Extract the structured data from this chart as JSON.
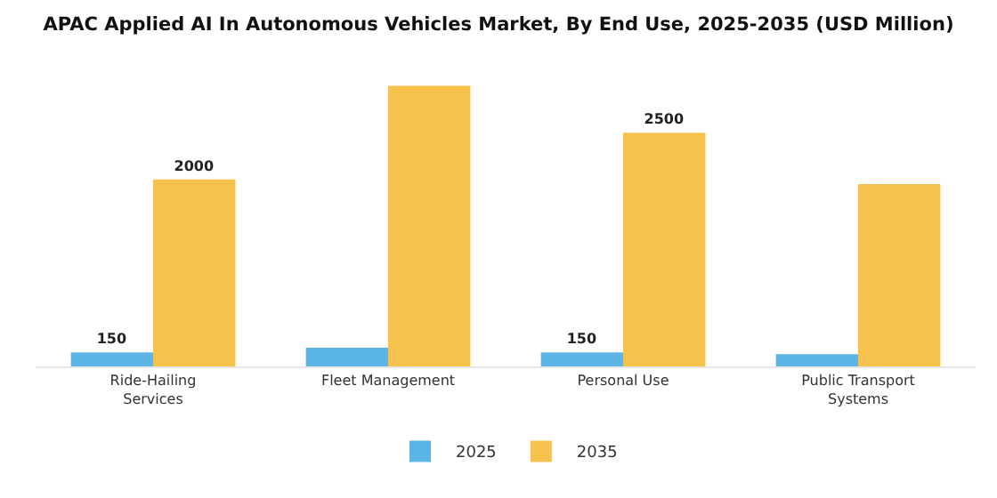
{
  "chart_data": {
    "type": "bar",
    "title": "APAC Applied AI In Autonomous Vehicles Market, By End Use, 2025-2035 (USD Million)",
    "categories": [
      "Ride-Hailing Services",
      "Fleet Management",
      "Personal Use",
      "Public Transport Systems"
    ],
    "series": [
      {
        "name": "2025",
        "color": "#5ab4e5",
        "values": [
          150,
          200,
          150,
          130
        ],
        "value_labels": [
          "150",
          null,
          "150",
          null
        ]
      },
      {
        "name": "2035",
        "color": "#f7c24b",
        "values": [
          2000,
          3000,
          2500,
          1950
        ],
        "value_labels": [
          "2000",
          null,
          "2500",
          null
        ]
      }
    ],
    "tick_labels": "x",
    "legend": "bottom"
  }
}
